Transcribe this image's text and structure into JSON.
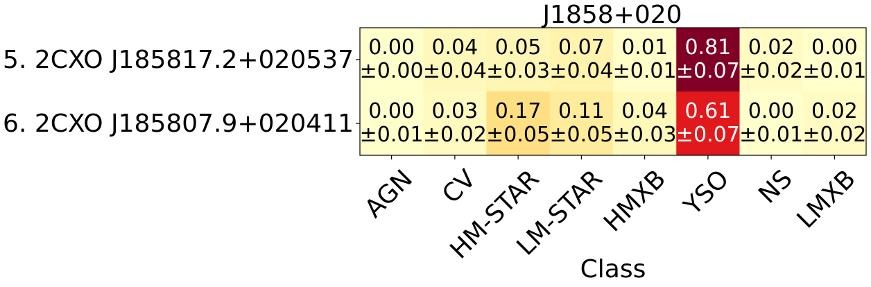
{
  "chart_data": {
    "type": "heatmap",
    "title": "J1858+020",
    "xlabel": "Class",
    "ylabel": "",
    "categories": [
      "AGN",
      "CV",
      "HM-STAR",
      "LM-STAR",
      "HMXB",
      "YSO",
      "NS",
      "LMXB"
    ],
    "rows": [
      {
        "label": "5. 2CXO J185817.2+020537",
        "values": [
          0.0,
          0.04,
          0.05,
          0.07,
          0.01,
          0.81,
          0.02,
          0.0
        ],
        "errors": [
          0.0,
          0.04,
          0.03,
          0.04,
          0.01,
          0.07,
          0.02,
          0.01
        ],
        "cells": [
          {
            "value": "0.00",
            "error": "±0.00"
          },
          {
            "value": "0.04",
            "error": "±0.04"
          },
          {
            "value": "0.05",
            "error": "±0.03"
          },
          {
            "value": "0.07",
            "error": "±0.04"
          },
          {
            "value": "0.01",
            "error": "±0.01"
          },
          {
            "value": "0.81",
            "error": "±0.07"
          },
          {
            "value": "0.02",
            "error": "±0.02"
          },
          {
            "value": "0.00",
            "error": "±0.01"
          }
        ]
      },
      {
        "label": "6. 2CXO J185807.9+020411",
        "values": [
          0.0,
          0.03,
          0.17,
          0.11,
          0.04,
          0.61,
          0.0,
          0.02
        ],
        "errors": [
          0.01,
          0.02,
          0.05,
          0.05,
          0.03,
          0.07,
          0.01,
          0.02
        ],
        "cells": [
          {
            "value": "0.00",
            "error": "±0.01"
          },
          {
            "value": "0.03",
            "error": "±0.02"
          },
          {
            "value": "0.17",
            "error": "±0.05"
          },
          {
            "value": "0.11",
            "error": "±0.05"
          },
          {
            "value": "0.04",
            "error": "±0.03"
          },
          {
            "value": "0.61",
            "error": "±0.07"
          },
          {
            "value": "0.00",
            "error": "±0.01"
          },
          {
            "value": "0.02",
            "error": "±0.02"
          }
        ]
      }
    ],
    "colormap": "YlOrRd",
    "color_range": [
      0,
      0.81
    ],
    "text_color_dark": "#000000",
    "text_color_light": "#ffffff"
  }
}
